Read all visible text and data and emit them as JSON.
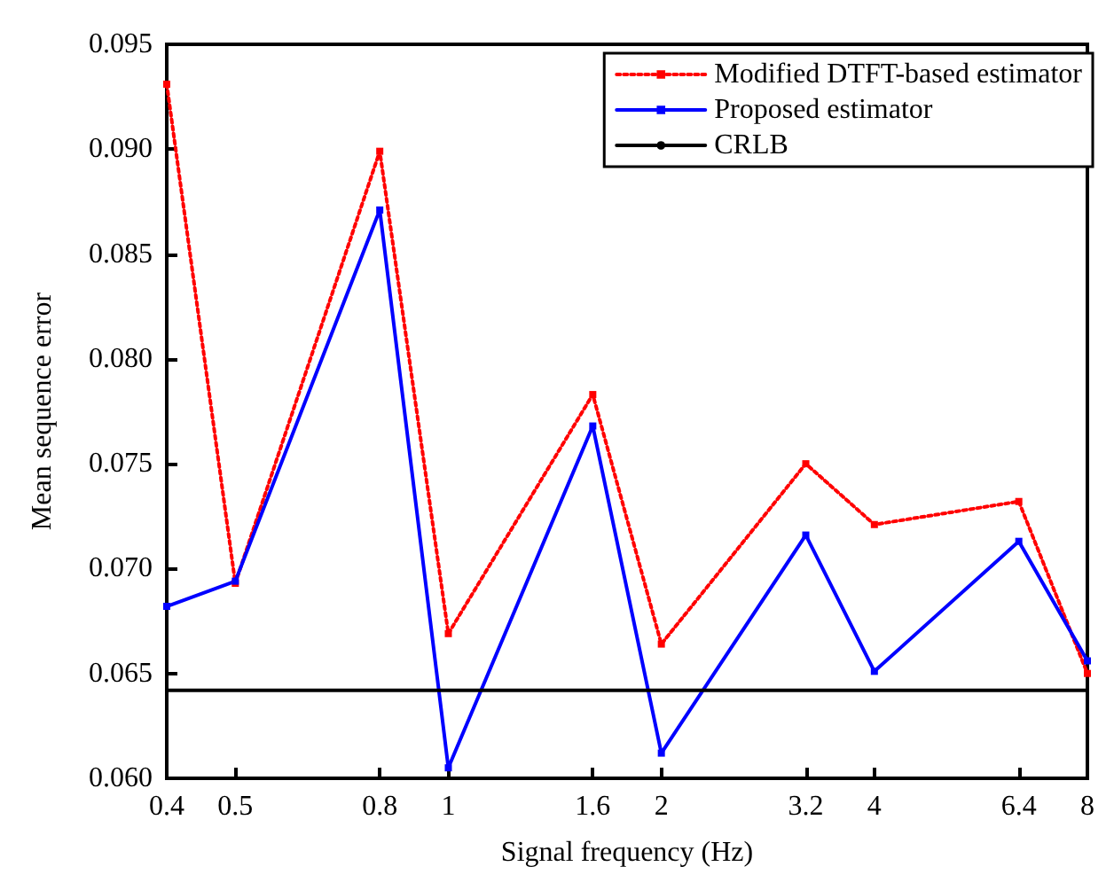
{
  "chart_data": {
    "type": "line",
    "xlabel": "Signal frequency (Hz)",
    "ylabel": "Mean sequence error",
    "x": [
      0.4,
      0.5,
      0.8,
      1,
      1.6,
      2,
      3.2,
      4,
      6.4,
      8
    ],
    "series": [
      {
        "name": "Modified DTFT-based estimator",
        "color": "#ff0000",
        "line_style": "dotted",
        "marker": "square",
        "values": [
          0.0931,
          0.0693,
          0.0899,
          0.0669,
          0.0783,
          0.0664,
          0.075,
          0.0721,
          0.0732,
          0.065
        ]
      },
      {
        "name": "Proposed estimator",
        "color": "#0000ff",
        "line_style": "solid",
        "marker": "square",
        "values": [
          0.0682,
          0.0694,
          0.0871,
          0.0605,
          0.0768,
          0.0612,
          0.0716,
          0.0651,
          0.0713,
          0.0656
        ]
      },
      {
        "name": "CRLB",
        "color": "#000000",
        "line_style": "solid",
        "marker": "none",
        "x": [
          0.4,
          8
        ],
        "values": [
          0.0642,
          0.0642
        ]
      }
    ],
    "log": "x",
    "xlim": [
      0.4,
      8
    ],
    "xticks": [
      0.4,
      0.5,
      0.8,
      1,
      1.6,
      2,
      3.2,
      4,
      6.4,
      8
    ],
    "ylim": [
      0.06,
      0.095
    ],
    "yticks": [
      {
        "value": 0.06,
        "label": "0.060"
      },
      {
        "value": 0.065,
        "label": "0.065"
      },
      {
        "value": 0.07,
        "label": "0.070"
      },
      {
        "value": 0.075,
        "label": "0.075"
      },
      {
        "value": 0.08,
        "label": "0.080"
      },
      {
        "value": 0.085,
        "label": "0.085"
      },
      {
        "value": 0.09,
        "label": "0.090"
      },
      {
        "value": 0.095,
        "label": "0.095"
      }
    ],
    "grid": false,
    "legend": "top right"
  }
}
